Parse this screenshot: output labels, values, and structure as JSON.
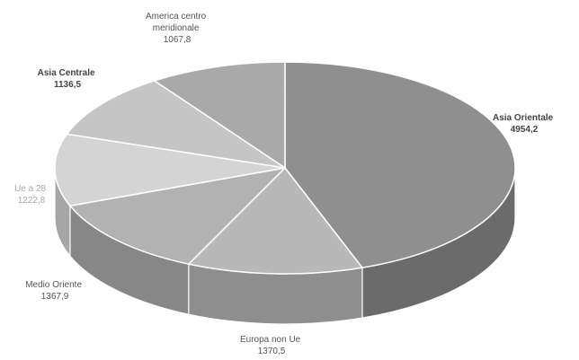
{
  "chart_data": {
    "type": "pie",
    "style": "3d",
    "slices": [
      {
        "label": [
          "Asia Orientale"
        ],
        "value_text": "4954,2",
        "value": 4954.2,
        "color": "#8f8f8f",
        "side_color": "#6b6b6b"
      },
      {
        "label": [
          "Europa non Ue"
        ],
        "value_text": "1370,5",
        "value": 1370.5,
        "color": "#b8b8b8",
        "side_color": "#8e8e8e"
      },
      {
        "label": [
          "Medio Oriente"
        ],
        "value_text": "1367,9",
        "value": 1367.9,
        "color": "#b2b2b2",
        "side_color": "#878787"
      },
      {
        "label": [
          "Ue a 28"
        ],
        "value_text": "1222,8",
        "value": 1222.8,
        "color": "#d4d4d4",
        "side_color": "#a6a6a6"
      },
      {
        "label": [
          "Asia Centrale"
        ],
        "value_text": "1136,5",
        "value": 1136.5,
        "color": "#c5c5c5",
        "side_color": "#9a9a9a"
      },
      {
        "label": [
          "America centro",
          "meridionale"
        ],
        "value_text": "1067,8",
        "value": 1067.8,
        "color": "#a9a9a9",
        "side_color": "#808080"
      }
    ]
  }
}
